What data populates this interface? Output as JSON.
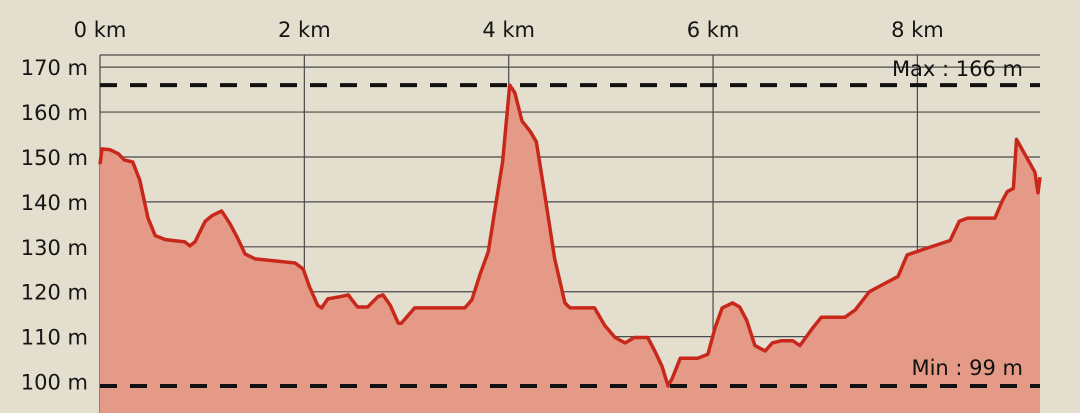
{
  "chart_data": {
    "type": "area",
    "title": "",
    "xlabel": "",
    "ylabel": "",
    "xlim": [
      0,
      9.2
    ],
    "ylim": [
      93,
      172.7
    ],
    "grid": true,
    "x_ticks": [
      0,
      2,
      4,
      6,
      8
    ],
    "x_tick_labels": [
      "0 km",
      "2 km",
      "4 km",
      "6 km",
      "8 km"
    ],
    "y_ticks": [
      100,
      110,
      120,
      130,
      140,
      150,
      160,
      170
    ],
    "y_tick_labels": [
      "100 m",
      "110 m",
      "120 m",
      "130 m",
      "140 m",
      "150 m",
      "160 m",
      "170 m"
    ],
    "annotations": {
      "max": {
        "label": "Max : 166 m",
        "value": 166
      },
      "min": {
        "label": "Min : 99 m",
        "value": 99
      }
    },
    "colors": {
      "line": "#c8281c",
      "fill": "#e59a87",
      "background": "#e3decd",
      "grid": "#4a4a4a",
      "reference_lines": "#111111"
    },
    "series": [
      {
        "x": [
          0,
          0.02,
          0.1,
          0.18,
          0.24,
          0.32,
          0.39,
          0.47,
          0.54,
          0.64,
          0.83,
          0.88,
          0.93,
          1.03,
          1.1,
          1.19,
          1.27,
          1.35,
          1.42,
          1.52,
          1.91,
          1.99,
          2.05,
          2.13,
          2.17,
          2.23,
          2.35,
          2.43,
          2.52,
          2.62,
          2.72,
          2.77,
          2.84,
          2.92,
          2.95,
          3.08,
          3.57,
          3.64,
          3.72,
          3.8,
          3.86,
          3.94,
          4.01,
          4.06,
          4.13,
          4.21,
          4.27,
          4.35,
          4.45,
          4.55,
          4.6,
          4.84,
          4.94,
          5.04,
          5.14,
          5.23,
          5.36,
          5.43,
          5.5,
          5.56,
          5.6,
          5.68,
          5.85,
          5.95,
          6.02,
          6.09,
          6.19,
          6.26,
          6.33,
          6.41,
          6.51,
          6.58,
          6.67,
          6.78,
          6.85,
          6.97,
          7.06,
          7.29,
          7.39,
          7.53,
          7.81,
          7.9,
          8.07,
          8.32,
          8.41,
          8.49,
          8.76,
          8.83,
          8.88,
          8.94,
          8.97,
          9.15,
          9.18,
          9.2
        ],
        "y": [
          148.4,
          151.8,
          151.6,
          150.7,
          149.3,
          148.9,
          144.8,
          136.4,
          132.5,
          131.6,
          131.1,
          130.2,
          131.1,
          135.7,
          137.0,
          138.0,
          135.2,
          131.8,
          128.4,
          127.3,
          126.4,
          125.0,
          121.1,
          117.0,
          116.4,
          118.4,
          118.9,
          119.3,
          116.6,
          116.6,
          118.9,
          119.3,
          117.0,
          113.0,
          113.0,
          116.4,
          116.4,
          118.2,
          123.9,
          128.9,
          137.5,
          148.9,
          166.0,
          164.3,
          158.0,
          155.7,
          153.4,
          142.0,
          127.3,
          117.5,
          116.4,
          116.4,
          112.5,
          109.8,
          108.6,
          109.8,
          109.8,
          106.8,
          103.4,
          99.0,
          100.7,
          105.2,
          105.2,
          106.1,
          112.0,
          116.4,
          117.5,
          116.6,
          113.6,
          108.0,
          106.8,
          108.6,
          109.1,
          109.1,
          108.0,
          111.8,
          114.3,
          114.3,
          115.9,
          120.0,
          123.4,
          128.2,
          129.5,
          131.4,
          135.7,
          136.4,
          136.4,
          140.2,
          142.3,
          143.0,
          153.9,
          146.6,
          142.0,
          145.5
        ]
      }
    ]
  }
}
